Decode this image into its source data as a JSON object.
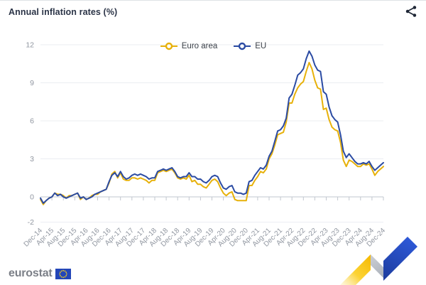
{
  "header": {
    "share_icon": "share-nodes"
  },
  "footer": {
    "brand_text": "eurostat",
    "flag_icon": "eu-flag"
  },
  "colors": {
    "euro_area_line": "#E7B10A",
    "eu_line": "#2B4BA3",
    "grid": "#ebedf2",
    "zero_axis": "#c2c7cf",
    "tick_label": "#9096a0",
    "title_text": "#2b3447"
  },
  "chart_data": {
    "type": "line",
    "title": "Annual inflation rates (%)",
    "unit": "%",
    "frequency": "monthly",
    "x_range": [
      "Dec-14",
      "Dec-24"
    ],
    "ylim": [
      -2,
      12
    ],
    "yticks": [
      -2,
      0,
      3,
      6,
      9,
      12
    ],
    "grid": "horizontal",
    "legend_position": "top-center",
    "x_tick_labels": [
      "Dec-14",
      "Apr-15",
      "Aug-15",
      "Dec-15",
      "Apr-16",
      "Aug-16",
      "Dec-16",
      "Apr-17",
      "Aug-17",
      "Dec-17",
      "Apr-18",
      "Aug-18",
      "Dec-18",
      "Apr-19",
      "Aug-19",
      "Dec-19",
      "Apr-20",
      "Aug-20",
      "Dec-20",
      "Apr-21",
      "Aug-21",
      "Dec-21",
      "Apr-22",
      "Aug-22",
      "Dec-22",
      "Apr-23",
      "Aug-23",
      "Dec-23",
      "Apr-24",
      "Aug-24",
      "Dec-24"
    ],
    "series": [
      {
        "name": "Euro area",
        "color": "#E7B10A",
        "values": [
          -0.2,
          -0.6,
          -0.3,
          -0.1,
          0.0,
          0.3,
          0.2,
          0.2,
          0.1,
          -0.1,
          0.1,
          0.1,
          0.2,
          0.3,
          -0.2,
          0.0,
          -0.2,
          -0.1,
          0.1,
          0.2,
          0.2,
          0.4,
          0.5,
          0.6,
          1.1,
          1.8,
          2.0,
          1.5,
          1.9,
          1.4,
          1.3,
          1.3,
          1.5,
          1.5,
          1.4,
          1.5,
          1.4,
          1.3,
          1.1,
          1.3,
          1.3,
          1.9,
          2.0,
          2.1,
          2.0,
          2.1,
          2.2,
          1.9,
          1.5,
          1.4,
          1.5,
          1.4,
          1.7,
          1.2,
          1.3,
          1.0,
          1.0,
          0.8,
          0.7,
          1.0,
          1.3,
          1.4,
          1.2,
          0.7,
          0.3,
          0.1,
          0.3,
          0.4,
          -0.2,
          -0.3,
          -0.3,
          -0.3,
          -0.3,
          0.9,
          0.9,
          1.3,
          1.6,
          2.0,
          1.9,
          2.2,
          3.0,
          3.4,
          4.1,
          4.9,
          5.0,
          5.1,
          5.9,
          7.4,
          7.4,
          8.1,
          8.6,
          8.9,
          9.1,
          9.9,
          10.6,
          10.1,
          9.2,
          8.6,
          8.5,
          6.9,
          7.0,
          6.1,
          5.5,
          5.3,
          5.2,
          4.3,
          2.9,
          2.4,
          2.9,
          2.8,
          2.6,
          2.4,
          2.4,
          2.6,
          2.5,
          2.6,
          2.2,
          1.7,
          2.0,
          2.2,
          2.4
        ]
      },
      {
        "name": "EU",
        "color": "#2B4BA3",
        "values": [
          -0.1,
          -0.5,
          -0.3,
          -0.1,
          0.0,
          0.3,
          0.1,
          0.2,
          0.0,
          -0.1,
          0.0,
          0.1,
          0.2,
          0.3,
          -0.1,
          0.0,
          -0.2,
          -0.1,
          0.0,
          0.2,
          0.3,
          0.4,
          0.5,
          0.6,
          1.2,
          1.7,
          1.9,
          1.6,
          2.0,
          1.6,
          1.4,
          1.5,
          1.7,
          1.8,
          1.7,
          1.8,
          1.7,
          1.6,
          1.4,
          1.5,
          1.5,
          2.0,
          2.1,
          2.2,
          2.1,
          2.2,
          2.3,
          2.0,
          1.6,
          1.5,
          1.6,
          1.6,
          1.9,
          1.6,
          1.6,
          1.4,
          1.4,
          1.2,
          1.1,
          1.3,
          1.6,
          1.7,
          1.6,
          1.1,
          0.7,
          0.6,
          0.8,
          0.9,
          0.4,
          0.3,
          0.3,
          0.2,
          0.3,
          1.2,
          1.3,
          1.7,
          2.0,
          2.3,
          2.2,
          2.5,
          3.2,
          3.6,
          4.4,
          5.2,
          5.3,
          5.6,
          6.2,
          7.8,
          8.1,
          8.8,
          9.6,
          9.8,
          10.1,
          10.9,
          11.5,
          11.1,
          10.4,
          10.0,
          9.9,
          8.3,
          8.1,
          7.1,
          6.4,
          6.1,
          5.9,
          4.9,
          3.6,
          3.1,
          3.4,
          3.1,
          2.8,
          2.6,
          2.6,
          2.7,
          2.6,
          2.8,
          2.4,
          2.1,
          2.3,
          2.5,
          2.7
        ]
      }
    ]
  }
}
